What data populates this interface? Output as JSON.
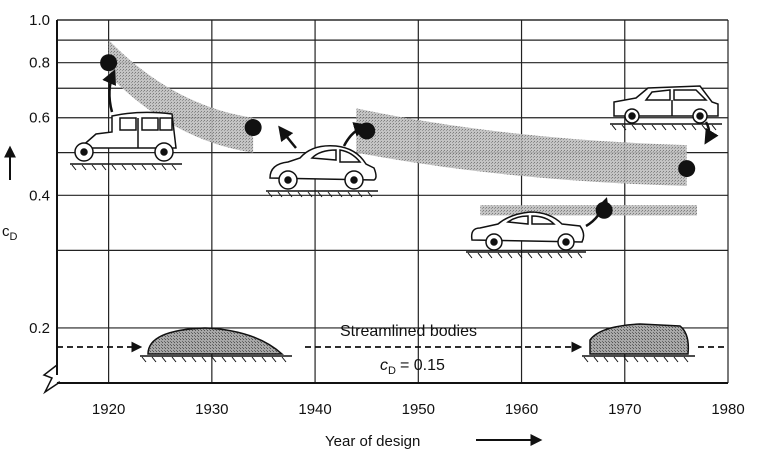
{
  "chart_data": {
    "type": "scatter",
    "title": "",
    "xlabel": "Year of design",
    "ylabel": "c",
    "ylabel_sub": "D",
    "xlim": [
      1915,
      1980
    ],
    "ylim": [
      0.15,
      1.0
    ],
    "y_scale": "log",
    "grid": true,
    "x_ticks": [
      "1920",
      "1930",
      "1940",
      "1950",
      "1960",
      "1970",
      "1980"
    ],
    "y_ticks": [
      "0.2",
      "0.4",
      "0.6",
      "0.8",
      "1.0"
    ],
    "points": [
      {
        "x": 1920,
        "y": 0.8
      },
      {
        "x": 1934,
        "y": 0.57
      },
      {
        "x": 1945,
        "y": 0.56
      },
      {
        "x": 1968,
        "y": 0.37
      },
      {
        "x": 1976,
        "y": 0.46
      }
    ],
    "bands": [
      {
        "x": [
          1920,
          1934
        ],
        "y_upper": [
          0.9,
          0.6
        ],
        "y_lower": [
          0.75,
          0.5
        ]
      },
      {
        "x": [
          1944,
          1976
        ],
        "y_upper": [
          0.63,
          0.52
        ],
        "y_lower": [
          0.5,
          0.42
        ]
      },
      {
        "x": [
          1956,
          1977
        ],
        "y_upper": [
          0.38,
          0.38
        ],
        "y_lower": [
          0.36,
          0.36
        ]
      }
    ],
    "reference_line": {
      "y": 0.15,
      "label": "Streamlined bodies",
      "value_label": "= 0.15",
      "value_symbol": "c",
      "value_sub": "D"
    }
  }
}
